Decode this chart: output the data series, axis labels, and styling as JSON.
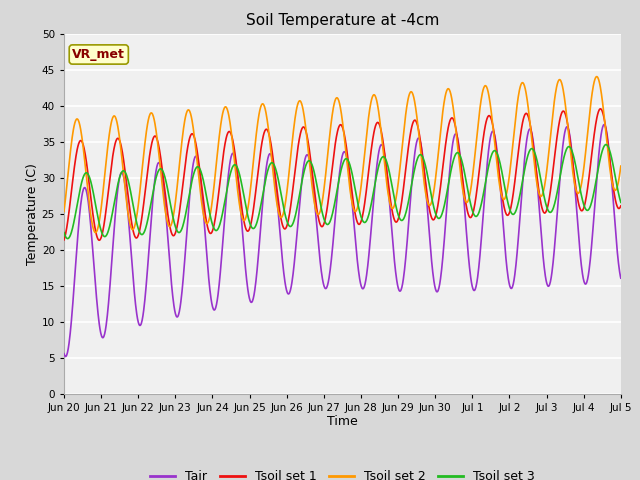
{
  "title": "Soil Temperature at -4cm",
  "xlabel": "Time",
  "ylabel": "Temperature (C)",
  "ylim": [
    0,
    50
  ],
  "yticks": [
    0,
    5,
    10,
    15,
    20,
    25,
    30,
    35,
    40,
    45,
    50
  ],
  "fig_bg": "#d8d8d8",
  "plot_bg": "#f0f0f0",
  "annotation_text": "VR_met",
  "annotation_bg": "#ffffcc",
  "annotation_border": "#999900",
  "annotation_text_color": "#880000",
  "colors": {
    "Tair": "#9933cc",
    "Tsoil1": "#ee1111",
    "Tsoil2": "#ff9900",
    "Tsoil3": "#22bb22"
  },
  "line_width": 1.2,
  "x_tick_labels": [
    "Jun 20",
    "Jun 21",
    "Jun 22",
    "Jun 23",
    "Jun 24",
    "Jun 25",
    "Jun 26",
    "Jun 27",
    "Jun 28",
    "Jun 29",
    "Jun 30",
    "Jul 1",
    "Jul 2",
    "Jul 3",
    "Jul 4",
    "Jul 5"
  ],
  "legend_labels": [
    "Tair",
    "Tsoil set 1",
    "Tsoil set 2",
    "Tsoil set 3"
  ]
}
